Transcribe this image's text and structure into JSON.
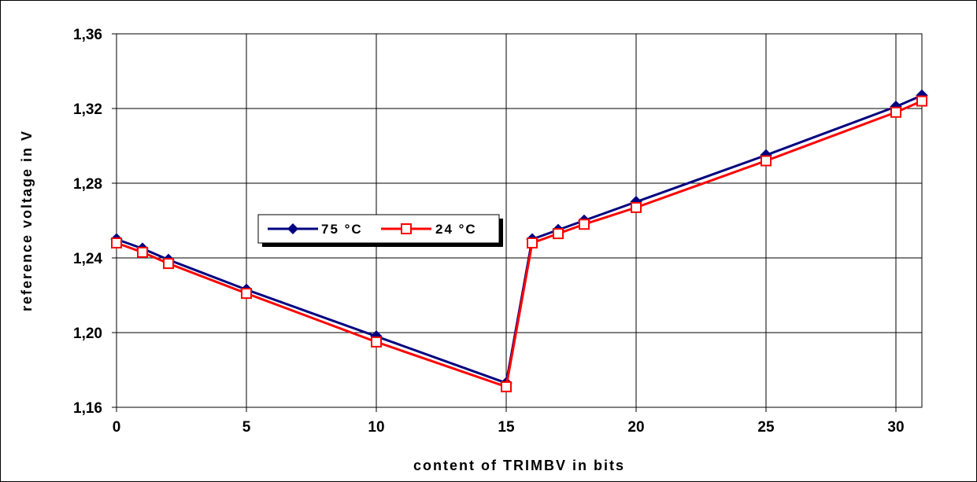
{
  "chart_data": {
    "type": "line",
    "xlabel": "content of TRIMBV in bits",
    "ylabel": "reference voltage in V",
    "xlim": [
      0,
      31
    ],
    "ylim": [
      1.16,
      1.36
    ],
    "x_ticks": [
      0,
      5,
      10,
      15,
      20,
      25,
      30
    ],
    "x_tick_labels": [
      "0",
      "5",
      "10",
      "15",
      "20",
      "25",
      "30"
    ],
    "y_ticks": [
      1.16,
      1.2,
      1.24,
      1.28,
      1.32,
      1.36
    ],
    "y_tick_labels": [
      "1,16",
      "1,20",
      "1,24",
      "1,28",
      "1,32",
      "1,36"
    ],
    "grid": true,
    "legend_position": "middle-left",
    "x": [
      0,
      1,
      2,
      5,
      10,
      15,
      16,
      17,
      18,
      20,
      25,
      30,
      31
    ],
    "series": [
      {
        "name": "75 °C",
        "color": "#000080",
        "marker": "filled-diamond",
        "values": [
          1.25,
          1.245,
          1.239,
          1.223,
          1.198,
          1.173,
          1.25,
          1.255,
          1.26,
          1.27,
          1.295,
          1.321,
          1.327
        ]
      },
      {
        "name": "24 °C",
        "color": "#ff0000",
        "marker": "open-square",
        "values": [
          1.248,
          1.243,
          1.237,
          1.221,
          1.195,
          1.171,
          1.248,
          1.253,
          1.258,
          1.267,
          1.292,
          1.318,
          1.324
        ]
      }
    ]
  }
}
